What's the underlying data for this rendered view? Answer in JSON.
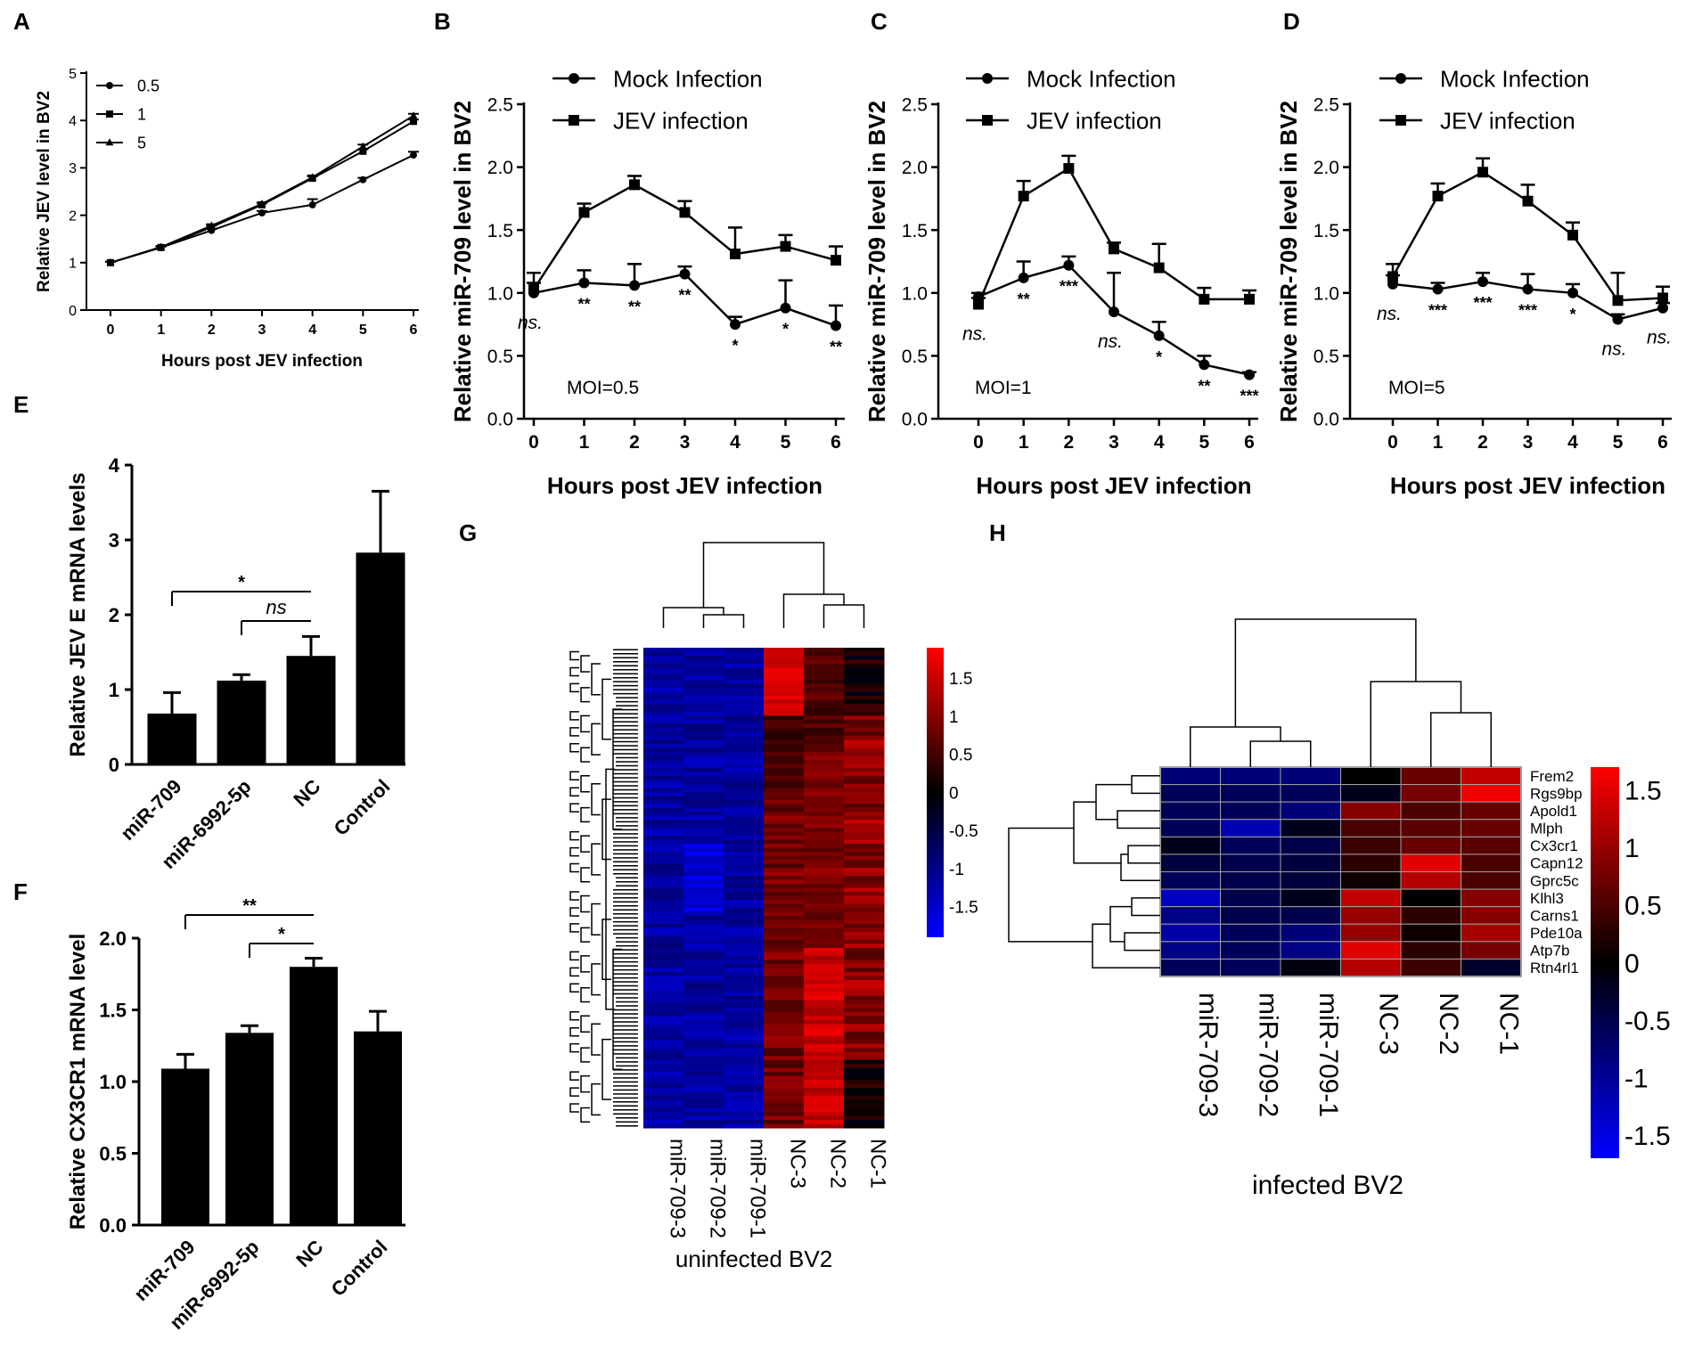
{
  "chart_data": [
    {
      "id": "A",
      "panel_label": "A",
      "type": "line",
      "x": [
        0,
        1,
        2,
        3,
        4,
        5,
        6
      ],
      "xlabel": "Hours post JEV infection",
      "ylabel": "Relative JEV level in BV2",
      "ylim": [
        0,
        5
      ],
      "yticks": [
        "0",
        "1",
        "2",
        "3",
        "4",
        "5"
      ],
      "legend_position": "top-left",
      "series": [
        {
          "name": "0.5",
          "marker": "circle",
          "values": [
            1.0,
            1.32,
            1.68,
            2.05,
            2.22,
            2.75,
            3.27
          ],
          "errors": [
            0.02,
            0.03,
            0.03,
            0.04,
            0.12,
            0.04,
            0.07
          ]
        },
        {
          "name": "1",
          "marker": "square",
          "values": [
            1.0,
            1.32,
            1.75,
            2.22,
            2.78,
            3.35,
            3.98
          ],
          "errors": [
            0.02,
            0.02,
            0.03,
            0.03,
            0.04,
            0.04,
            0.04
          ]
        },
        {
          "name": "5",
          "marker": "triangle",
          "values": [
            1.0,
            1.33,
            1.78,
            2.24,
            2.8,
            3.45,
            4.1
          ],
          "errors": [
            0.02,
            0.02,
            0.03,
            0.03,
            0.04,
            0.04,
            0.04
          ]
        }
      ]
    },
    {
      "id": "B",
      "panel_label": "B",
      "type": "line",
      "x": [
        0,
        1,
        2,
        3,
        4,
        5,
        6
      ],
      "xlabel": "Hours post JEV infection",
      "ylabel": "Relative miR-709 level in BV2",
      "ylim": [
        0,
        2.5
      ],
      "yticks": [
        "0.0",
        "0.5",
        "1.0",
        "1.5",
        "2.0",
        "2.5"
      ],
      "annotation": "MOI=0.5",
      "series": [
        {
          "name": "Mock Infection",
          "marker": "circle",
          "values": [
            1.0,
            1.08,
            1.06,
            1.15,
            0.75,
            0.88,
            0.74
          ],
          "errors": [
            0.08,
            0.1,
            0.17,
            0.06,
            0.06,
            0.22,
            0.16
          ]
        },
        {
          "name": "JEV infection",
          "marker": "square",
          "values": [
            1.03,
            1.64,
            1.86,
            1.64,
            1.31,
            1.37,
            1.26
          ],
          "errors": [
            0.13,
            0.07,
            0.07,
            0.09,
            0.21,
            0.09,
            0.11
          ]
        }
      ],
      "significance": [
        "ns.",
        "**",
        "**",
        "**",
        "*",
        "*",
        "**"
      ]
    },
    {
      "id": "C",
      "panel_label": "C",
      "type": "line",
      "x": [
        0,
        1,
        2,
        3,
        4,
        5,
        6
      ],
      "xlabel": "Hours post JEV infection",
      "ylabel": "Relative miR-709 level in BV2",
      "ylim": [
        0,
        2.5
      ],
      "yticks": [
        "0.0",
        "0.5",
        "1.0",
        "1.5",
        "2.0",
        "2.5"
      ],
      "annotation": "MOI=1",
      "series": [
        {
          "name": "Mock Infection",
          "marker": "circle",
          "values": [
            0.97,
            1.12,
            1.22,
            0.85,
            0.66,
            0.43,
            0.35
          ],
          "errors": [
            0.03,
            0.13,
            0.07,
            0.31,
            0.11,
            0.07,
            0.02
          ]
        },
        {
          "name": "JEV infection",
          "marker": "square",
          "values": [
            0.91,
            1.77,
            1.99,
            1.35,
            1.2,
            0.95,
            0.95
          ],
          "errors": [
            0.05,
            0.12,
            0.1,
            0.05,
            0.19,
            0.09,
            0.07
          ]
        }
      ],
      "significance": [
        "ns.",
        "**",
        "***",
        "ns.",
        "*",
        "**",
        "***"
      ]
    },
    {
      "id": "D",
      "panel_label": "D",
      "type": "line",
      "x": [
        0,
        1,
        2,
        3,
        4,
        5,
        6
      ],
      "xlabel": "Hours post JEV infection",
      "ylabel": "Relative miR-709 level in BV2",
      "ylim": [
        0,
        2.5
      ],
      "yticks": [
        "0.0",
        "0.5",
        "1.0",
        "1.5",
        "2.0",
        "2.5"
      ],
      "annotation": "MOI=5",
      "series": [
        {
          "name": "Mock Infection",
          "marker": "circle",
          "values": [
            1.07,
            1.03,
            1.09,
            1.03,
            1.0,
            0.79,
            0.88
          ],
          "errors": [
            0.07,
            0.05,
            0.07,
            0.12,
            0.07,
            0.04,
            0.04
          ]
        },
        {
          "name": "JEV infection",
          "marker": "square",
          "values": [
            1.13,
            1.77,
            1.96,
            1.73,
            1.46,
            0.94,
            0.96
          ],
          "errors": [
            0.1,
            0.1,
            0.11,
            0.13,
            0.1,
            0.22,
            0.09
          ]
        }
      ],
      "significance": [
        "ns.",
        "***",
        "***",
        "***",
        "*",
        "ns.",
        "ns."
      ]
    },
    {
      "id": "E",
      "panel_label": "E",
      "type": "bar",
      "categories": [
        "miR-709",
        "miR-6992-5p",
        "NC",
        "Control"
      ],
      "values": [
        0.68,
        1.12,
        1.45,
        2.83
      ],
      "errors": [
        0.28,
        0.08,
        0.26,
        0.82
      ],
      "ylabel": "Relative JEV E mRNA levels",
      "ylim": [
        0,
        4
      ],
      "yticks": [
        "0",
        "1",
        "2",
        "3",
        "4"
      ],
      "comparisons": [
        {
          "from": "miR-709",
          "to": "NC",
          "label": "*",
          "italic": false
        },
        {
          "from": "miR-6992-5p",
          "to": "NC",
          "label": "ns",
          "italic": true
        }
      ]
    },
    {
      "id": "F",
      "panel_label": "F",
      "type": "bar",
      "categories": [
        "miR-709",
        "miR-6992-5p",
        "NC",
        "Control"
      ],
      "values": [
        1.09,
        1.34,
        1.8,
        1.35
      ],
      "errors": [
        0.1,
        0.05,
        0.06,
        0.14
      ],
      "ylabel": "Relative CX3CR1 mRNA level",
      "ylim": [
        0,
        2.0
      ],
      "yticks": [
        "0.0",
        "0.5",
        "1.0",
        "1.5",
        "2.0"
      ],
      "comparisons": [
        {
          "from": "miR-709",
          "to": "NC",
          "label": "**",
          "italic": false
        },
        {
          "from": "miR-6992-5p",
          "to": "NC",
          "label": "*",
          "italic": false
        }
      ]
    },
    {
      "id": "G",
      "panel_label": "G",
      "type": "heatmap",
      "columns": [
        "miR-709-3",
        "miR-709-2",
        "miR-709-1",
        "NC-3",
        "NC-2",
        "NC-1"
      ],
      "caption": "uninfected BV2",
      "color_scale": {
        "min": -1.9,
        "max": 1.9,
        "low": "#0000ff",
        "mid": "#000000",
        "high": "#ff0000",
        "ticks": [
          "1.5",
          "1",
          "0.5",
          "0",
          "-0.5",
          "-1",
          "-1.5"
        ]
      },
      "row_count": 120,
      "row_labels_note": "gene names too small to read"
    },
    {
      "id": "H",
      "panel_label": "H",
      "type": "heatmap",
      "columns": [
        "miR-709-3",
        "miR-709-2",
        "miR-709-1",
        "NC-3",
        "NC-2",
        "NC-1"
      ],
      "rows": [
        "Frem2",
        "Rgs9bp",
        "Apold1",
        "Mlph",
        "Cx3cr1",
        "Capn12",
        "Gprc5c",
        "Klhl3",
        "Carns1",
        "Pde10a",
        "Atp7b",
        "Rtn4rl1"
      ],
      "values": [
        [
          -0.8,
          -0.8,
          -0.8,
          0.0,
          0.7,
          1.3
        ],
        [
          -0.6,
          -0.6,
          -0.6,
          -0.2,
          0.8,
          1.6
        ],
        [
          -0.6,
          -0.6,
          -0.8,
          0.9,
          0.5,
          0.7
        ],
        [
          -0.6,
          -1.2,
          -0.2,
          0.5,
          0.6,
          0.7
        ],
        [
          -0.2,
          -0.6,
          -0.5,
          0.4,
          0.7,
          0.6
        ],
        [
          -0.4,
          -0.5,
          -0.4,
          0.3,
          1.5,
          0.5
        ],
        [
          -0.6,
          -0.5,
          -0.4,
          0.1,
          1.2,
          0.5
        ],
        [
          -1.3,
          -0.5,
          -0.2,
          1.3,
          0.0,
          0.9
        ],
        [
          -0.9,
          -0.5,
          -0.5,
          1.0,
          0.3,
          0.9
        ],
        [
          -1.1,
          -0.6,
          -0.8,
          1.0,
          0.1,
          1.1
        ],
        [
          -0.9,
          -0.6,
          -0.9,
          1.5,
          0.3,
          0.8
        ],
        [
          -0.6,
          -0.6,
          -0.1,
          1.2,
          0.4,
          -0.3
        ]
      ],
      "caption": "infected BV2",
      "color_scale": {
        "min": -1.7,
        "max": 1.7,
        "low": "#0000ff",
        "mid": "#000000",
        "high": "#ff0000",
        "ticks": [
          "1.5",
          "1",
          "0.5",
          "0",
          "-0.5",
          "-1",
          "-1.5"
        ]
      }
    }
  ]
}
